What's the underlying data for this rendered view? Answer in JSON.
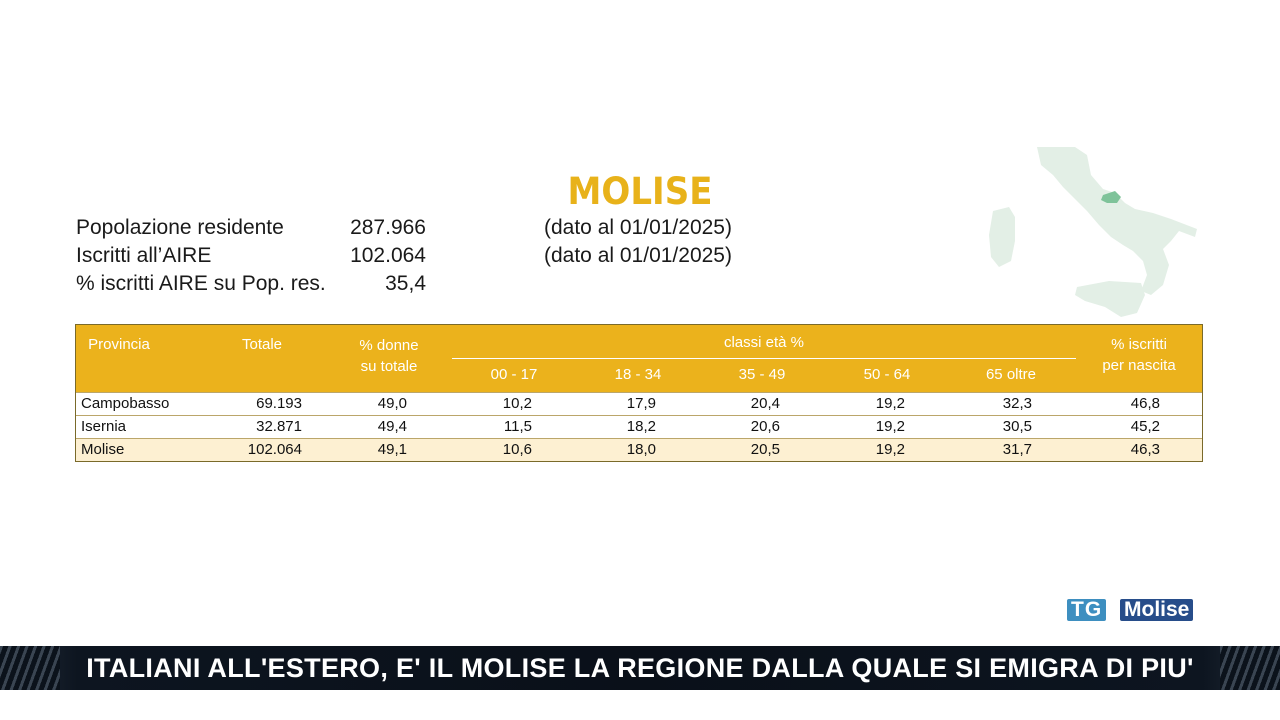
{
  "region": "MOLISE",
  "stats": [
    {
      "label": "Popolazione residente",
      "value": "287.966",
      "note": "(dato al 01/01/2025)"
    },
    {
      "label": "Iscritti all’AIRE",
      "value": "102.064",
      "note": "(dato al 01/01/2025)"
    },
    {
      "label": "% iscritti AIRE su Pop. res.",
      "value": "35,4",
      "note": ""
    }
  ],
  "table": {
    "headers": {
      "provincia": "Provincia",
      "totale": "Totale",
      "donne_1": "% donne",
      "donne_2": "su totale",
      "classi": "classi età %",
      "age_groups": [
        "00 - 17",
        "18 - 34",
        "35 - 49",
        "50 - 64",
        "65 oltre"
      ],
      "nascita_1": "% iscritti",
      "nascita_2": "per nascita"
    },
    "rows": [
      {
        "name": "Campobasso",
        "totale": "69.193",
        "donne": "49,0",
        "ages": [
          "10,2",
          "17,9",
          "20,4",
          "19,2",
          "32,3"
        ],
        "nascita": "46,8"
      },
      {
        "name": "Isernia",
        "totale": "32.871",
        "donne": "49,4",
        "ages": [
          "11,5",
          "18,2",
          "20,6",
          "19,2",
          "30,5"
        ],
        "nascita": "45,2"
      },
      {
        "name": "Molise",
        "totale": "102.064",
        "donne": "49,1",
        "ages": [
          "10,6",
          "18,0",
          "20,5",
          "19,2",
          "31,7"
        ],
        "nascita": "46,3"
      }
    ]
  },
  "logo": {
    "tg": "TG",
    "name": "Molise"
  },
  "ticker": "ITALIANI ALL'ESTERO, E' IL MOLISE LA REGIONE DALLA QUALE SI EMIGRA DI PIU'",
  "colors": {
    "accent": "#ebb21c",
    "title": "#e8b21a",
    "highlight_row": "#fdf0d2",
    "map_land": "#e3efe6",
    "map_region": "#7fc39a"
  }
}
